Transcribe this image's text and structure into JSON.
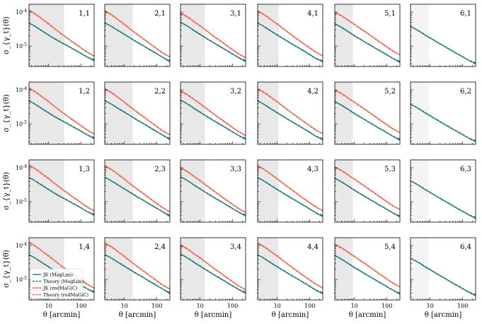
{
  "chart_data": {
    "type": "line",
    "title": "",
    "rows": 4,
    "cols": 6,
    "xlabel": "θ [arcmin]",
    "ylabel": "σ_{γ_t}(θ)",
    "xscale": "log",
    "yscale": "log",
    "xlim": [
      2.5,
      250
    ],
    "ylim": [
      2.5e-06,
      0.00017
    ],
    "x_ticks": [
      10,
      100
    ],
    "x_tick_labels": [
      "10",
      "100"
    ],
    "y_ticks": [
      1e-05,
      0.0001
    ],
    "y_tick_labels": [
      "10^-5",
      "10^-4"
    ],
    "theta_arcmin": [
      2.5,
      3.5,
      5,
      7,
      10,
      14,
      20,
      28,
      40,
      56,
      80,
      112,
      160,
      250
    ],
    "panel_labels": [
      [
        "1,1",
        "2,1",
        "3,1",
        "4,1",
        "5,1",
        "6,1"
      ],
      [
        "1,2",
        "2,2",
        "3,2",
        "4,2",
        "5,2",
        "6,2"
      ],
      [
        "1,3",
        "2,3",
        "3,3",
        "4,3",
        "5,3",
        "6,3"
      ],
      [
        "1,4",
        "2,4",
        "3,4",
        "4,4",
        "5,4",
        "6,4"
      ]
    ],
    "scale_cut_arcmin_by_lens_bin": [
      30,
      18,
      14,
      11,
      9,
      9
    ],
    "shade_color": "#e8e8e8",
    "shade_color_no_redmagic": "#f4f4f4",
    "series_colors": {
      "maglim": "#1f7a7a",
      "redmagic": "#f26a54"
    },
    "legend": [
      {
        "label": "JK (MagLim)",
        "style": "solid",
        "color": "#1f7a7a"
      },
      {
        "label": "Theory (MagLim)",
        "style": "dashed",
        "color": "#1f7a7a"
      },
      {
        "label": "JK (redMaGiC)",
        "style": "solid",
        "color": "#f26a54"
      },
      {
        "label": "Theory (redMaGiC)",
        "style": "dashed",
        "color": "#f26a54"
      }
    ],
    "legend_location": "lower-left of panel 1,4",
    "series": {
      "maglim_jk": [
        [
          4.8e-05,
          4e-05,
          3.2e-05,
          2.6e-05,
          2.1e-05,
          1.7e-05,
          1.4e-05,
          1.18e-05,
          9.8e-06,
          8.2e-06,
          6.8e-06,
          5.6e-06,
          4.6e-06,
          3.7e-06
        ],
        [
          4.8e-05,
          4.1e-05,
          3.3e-05,
          2.7e-05,
          2.2e-05,
          1.8e-05,
          1.45e-05,
          1.2e-05,
          9.9e-06,
          8.1e-06,
          6.6e-06,
          5.5e-06,
          4.5e-06,
          3.4e-06
        ],
        [
          5e-05,
          4.2e-05,
          3.4e-05,
          2.7e-05,
          2.2e-05,
          1.78e-05,
          1.45e-05,
          1.19e-05,
          9.7e-06,
          8.1e-06,
          6.5e-06,
          5.4e-06,
          4.4e-06,
          3.5e-06
        ],
        [
          4.8e-05,
          4e-05,
          3.2e-05,
          2.6e-05,
          2.1e-05,
          1.72e-05,
          1.4e-05,
          1.15e-05,
          9.5e-06,
          7.8e-06,
          6.4e-06,
          5.2e-06,
          4.2e-06,
          3.4e-06
        ],
        [
          4.6e-05,
          3.8e-05,
          3.1e-05,
          2.5e-05,
          2e-05,
          1.65e-05,
          1.35e-05,
          1.11e-05,
          9.1e-06,
          7.5e-06,
          6.2e-06,
          5.1e-06,
          4.2e-06,
          3.3e-06
        ],
        [
          3.8e-05,
          3.2e-05,
          2.6e-05,
          2.1e-05,
          1.72e-05,
          1.42e-05,
          1.16e-05,
          9.6e-06,
          7.9e-06,
          6.5e-06,
          5.4e-06,
          4.5e-06,
          3.7e-06,
          3e-06
        ]
      ],
      "redmagic_jk": [
        [
          0.000115,
          9.5e-05,
          7.5e-05,
          5.8e-05,
          4.6e-05,
          3.5e-05,
          2.7e-05,
          2.1e-05,
          1.65e-05,
          1.3e-05,
          1.03e-05,
          8.2e-06,
          6.5e-06,
          5e-06
        ],
        [
          0.00011,
          9.2e-05,
          7.3e-05,
          5.7e-05,
          4.4e-05,
          3.4e-05,
          2.6e-05,
          2.05e-05,
          1.6e-05,
          1.25e-05,
          9.8e-06,
          7.7e-06,
          6.1e-06,
          4.7e-06
        ],
        [
          9.5e-05,
          8e-05,
          6.4e-05,
          5e-05,
          4e-05,
          3.1e-05,
          2.4e-05,
          1.88e-05,
          1.48e-05,
          1.17e-05,
          9.2e-06,
          7.3e-06,
          5.8e-06,
          4.5e-06
        ],
        [
          0.00011,
          9.2e-05,
          7.3e-05,
          5.7e-05,
          4.5e-05,
          3.5e-05,
          2.7e-05,
          2.12e-05,
          1.66e-05,
          1.3e-05,
          1.03e-05,
          8.2e-06,
          6.5e-06,
          5.1e-06
        ],
        [
          0.0001,
          8.5e-05,
          6.9e-05,
          5.5e-05,
          4.4e-05,
          3.5e-05,
          2.8e-05,
          2.22e-05,
          1.76e-05,
          1.39e-05,
          1.1e-05,
          8.8e-06,
          7e-06,
          5.5e-06
        ],
        null
      ]
    }
  }
}
